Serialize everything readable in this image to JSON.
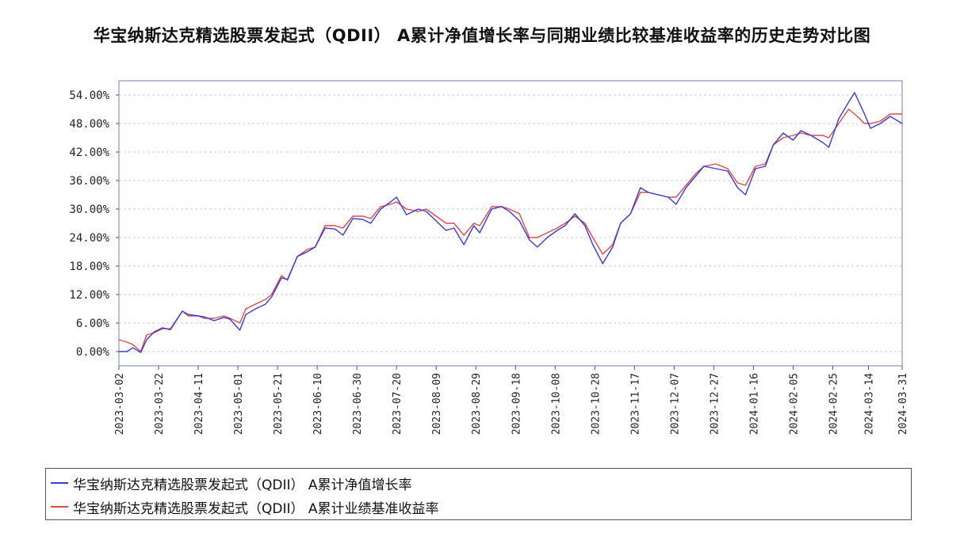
{
  "chart_data": {
    "type": "line",
    "title": "华宝纳斯达克精选股票发起式（QDII） A累计净值增长率与同期业绩比较基准收益率的历史走势对比图",
    "xlabel": "",
    "ylabel": "",
    "ylim": [
      -3,
      57
    ],
    "yticks": [
      "0.00%",
      "6.00%",
      "12.00%",
      "18.00%",
      "24.00%",
      "30.00%",
      "36.00%",
      "42.00%",
      "48.00%",
      "54.00%"
    ],
    "ytick_values": [
      0,
      6,
      12,
      18,
      24,
      30,
      36,
      42,
      48,
      54
    ],
    "xticks": [
      "2023-03-02",
      "2023-03-22",
      "2023-04-11",
      "2023-05-01",
      "2023-05-21",
      "2023-06-10",
      "2023-06-30",
      "2023-07-20",
      "2023-08-09",
      "2023-08-29",
      "2023-09-18",
      "2023-10-08",
      "2023-10-28",
      "2023-11-17",
      "2023-12-07",
      "2023-12-27",
      "2024-01-16",
      "2024-02-05",
      "2024-02-25",
      "2024-03-14",
      "2024-03-31"
    ],
    "xlim": [
      "2023-03-02",
      "2024-03-31"
    ],
    "grid": "horizontal-dashed",
    "legend_position": "bottom",
    "x": [
      "2023-03-02",
      "2023-03-06",
      "2023-03-09",
      "2023-03-13",
      "2023-03-16",
      "2023-03-20",
      "2023-03-24",
      "2023-03-28",
      "2023-04-03",
      "2023-04-06",
      "2023-04-11",
      "2023-04-14",
      "2023-04-19",
      "2023-04-24",
      "2023-04-27",
      "2023-05-02",
      "2023-05-05",
      "2023-05-10",
      "2023-05-15",
      "2023-05-18",
      "2023-05-23",
      "2023-05-26",
      "2023-05-31",
      "2023-06-05",
      "2023-06-09",
      "2023-06-14",
      "2023-06-19",
      "2023-06-23",
      "2023-06-28",
      "2023-07-03",
      "2023-07-07",
      "2023-07-12",
      "2023-07-17",
      "2023-07-20",
      "2023-07-25",
      "2023-07-31",
      "2023-08-04",
      "2023-08-09",
      "2023-08-14",
      "2023-08-18",
      "2023-08-23",
      "2023-08-28",
      "2023-08-31",
      "2023-09-06",
      "2023-09-11",
      "2023-09-15",
      "2023-09-20",
      "2023-09-25",
      "2023-09-29",
      "2023-10-04",
      "2023-10-09",
      "2023-10-13",
      "2023-10-18",
      "2023-10-23",
      "2023-10-27",
      "2023-11-01",
      "2023-11-06",
      "2023-11-10",
      "2023-11-15",
      "2023-11-20",
      "2023-11-24",
      "2023-11-29",
      "2023-12-04",
      "2023-12-08",
      "2023-12-13",
      "2023-12-18",
      "2023-12-22",
      "2023-12-28",
      "2024-01-03",
      "2024-01-08",
      "2024-01-12",
      "2024-01-17",
      "2024-01-22",
      "2024-01-26",
      "2024-01-31",
      "2024-02-05",
      "2024-02-09",
      "2024-02-14",
      "2024-02-20",
      "2024-02-23",
      "2024-02-28",
      "2024-03-04",
      "2024-03-07",
      "2024-03-12",
      "2024-03-15",
      "2024-03-20",
      "2024-03-25",
      "2024-03-31"
    ],
    "series": [
      {
        "name": "华宝纳斯达克精选股票发起式（QDII） A累计净值增长率",
        "color": "#3a3ad8",
        "values": [
          0.0,
          0.0,
          0.8,
          -0.2,
          2.5,
          4.2,
          5.0,
          4.6,
          8.5,
          7.8,
          7.5,
          7.3,
          6.5,
          7.2,
          6.8,
          4.5,
          7.8,
          9.0,
          10.0,
          11.5,
          15.5,
          15.2,
          20.0,
          21.0,
          22.0,
          26.0,
          25.8,
          24.5,
          28.0,
          27.8,
          27.0,
          30.0,
          31.5,
          32.5,
          28.8,
          30.0,
          29.5,
          27.5,
          25.5,
          26.0,
          22.5,
          26.5,
          25.0,
          30.0,
          30.5,
          29.5,
          27.5,
          23.5,
          22.0,
          24.0,
          25.5,
          26.5,
          29.0,
          26.5,
          22.5,
          18.5,
          22.0,
          27.0,
          29.0,
          34.5,
          33.5,
          33.0,
          32.5,
          31.0,
          34.5,
          37.0,
          39.0,
          38.5,
          38.0,
          34.5,
          33.0,
          38.5,
          39.0,
          43.5,
          46.0,
          44.5,
          46.5,
          45.5,
          44.0,
          43.0,
          49.0,
          52.5,
          54.5,
          50.0,
          47.0,
          48.0,
          49.5,
          48.0
        ]
      },
      {
        "name": "华宝纳斯达克精选股票发起式（QDII） A累计业绩基准收益率",
        "color": "#e24848",
        "values": [
          2.5,
          2.0,
          1.5,
          0.0,
          3.5,
          4.0,
          4.8,
          4.8,
          8.5,
          7.5,
          7.5,
          7.0,
          7.0,
          7.5,
          7.0,
          6.0,
          9.0,
          10.0,
          11.0,
          12.0,
          16.0,
          15.0,
          20.0,
          21.5,
          22.0,
          26.5,
          26.5,
          26.0,
          28.5,
          28.5,
          28.0,
          30.5,
          31.0,
          31.5,
          30.0,
          29.5,
          30.0,
          28.5,
          27.0,
          27.0,
          24.5,
          27.0,
          26.5,
          30.5,
          30.5,
          30.0,
          29.0,
          24.0,
          24.0,
          25.0,
          26.0,
          27.0,
          28.5,
          27.0,
          24.0,
          20.5,
          22.5,
          27.0,
          29.0,
          33.5,
          33.5,
          33.0,
          32.5,
          32.5,
          35.0,
          37.5,
          39.0,
          39.5,
          38.5,
          35.5,
          35.0,
          39.0,
          39.5,
          43.5,
          45.0,
          45.5,
          46.0,
          45.5,
          45.5,
          45.0,
          48.0,
          51.0,
          50.0,
          48.0,
          48.0,
          48.5,
          50.0,
          50.0
        ]
      }
    ]
  }
}
